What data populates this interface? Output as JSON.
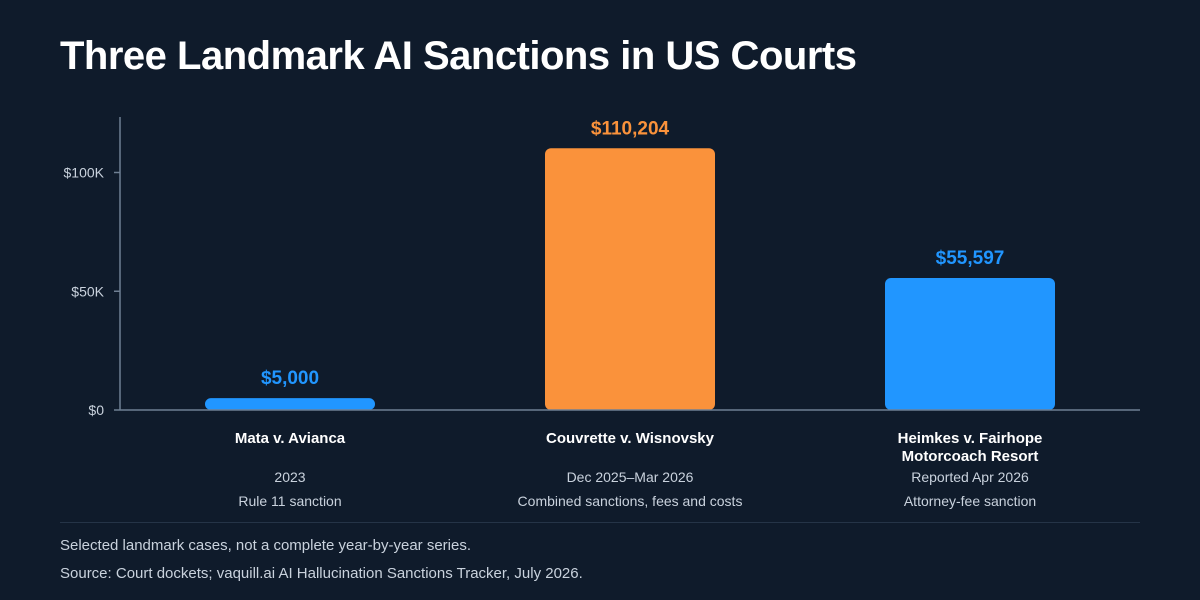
{
  "title": "Three Landmark AI Sanctions in US Courts",
  "colors": {
    "background": "#0f1b2b",
    "blue": "#2196ff",
    "orange": "#fa923b",
    "axis": "#6f7f93",
    "text_muted": "#c9d2dd"
  },
  "chart_data": {
    "type": "bar",
    "title": "Three Landmark AI Sanctions in US Courts",
    "xlabel": "",
    "ylabel": "",
    "ylim": [
      0,
      120000
    ],
    "y_ticks": [
      {
        "value": 0,
        "label": "$0"
      },
      {
        "value": 50000,
        "label": "$50K"
      },
      {
        "value": 100000,
        "label": "$100K"
      }
    ],
    "grid": false,
    "categories": [
      {
        "label_lines": [
          "Mata v. Avianca"
        ],
        "date": "2023",
        "description": "Rule 11 sanction",
        "value": 5000,
        "value_label": "$5,000",
        "color": "#2196ff"
      },
      {
        "label_lines": [
          "Couvrette v. Wisnovsky"
        ],
        "date": "Dec 2025–Mar 2026",
        "description": "Combined sanctions, fees and costs",
        "value": 110204,
        "value_label": "$110,204",
        "color": "#fa923b"
      },
      {
        "label_lines": [
          "Heimkes v. Fairhope",
          "Motorcoach Resort"
        ],
        "date": "Reported Apr 2026",
        "description": "Attorney-fee sanction",
        "value": 55597,
        "value_label": "$55,597",
        "color": "#2196ff"
      }
    ]
  },
  "footer": {
    "note": "Selected landmark cases, not a complete year-by-year series.",
    "source": "Source: Court dockets; vaquill.ai AI Hallucination Sanctions Tracker, July 2026."
  }
}
